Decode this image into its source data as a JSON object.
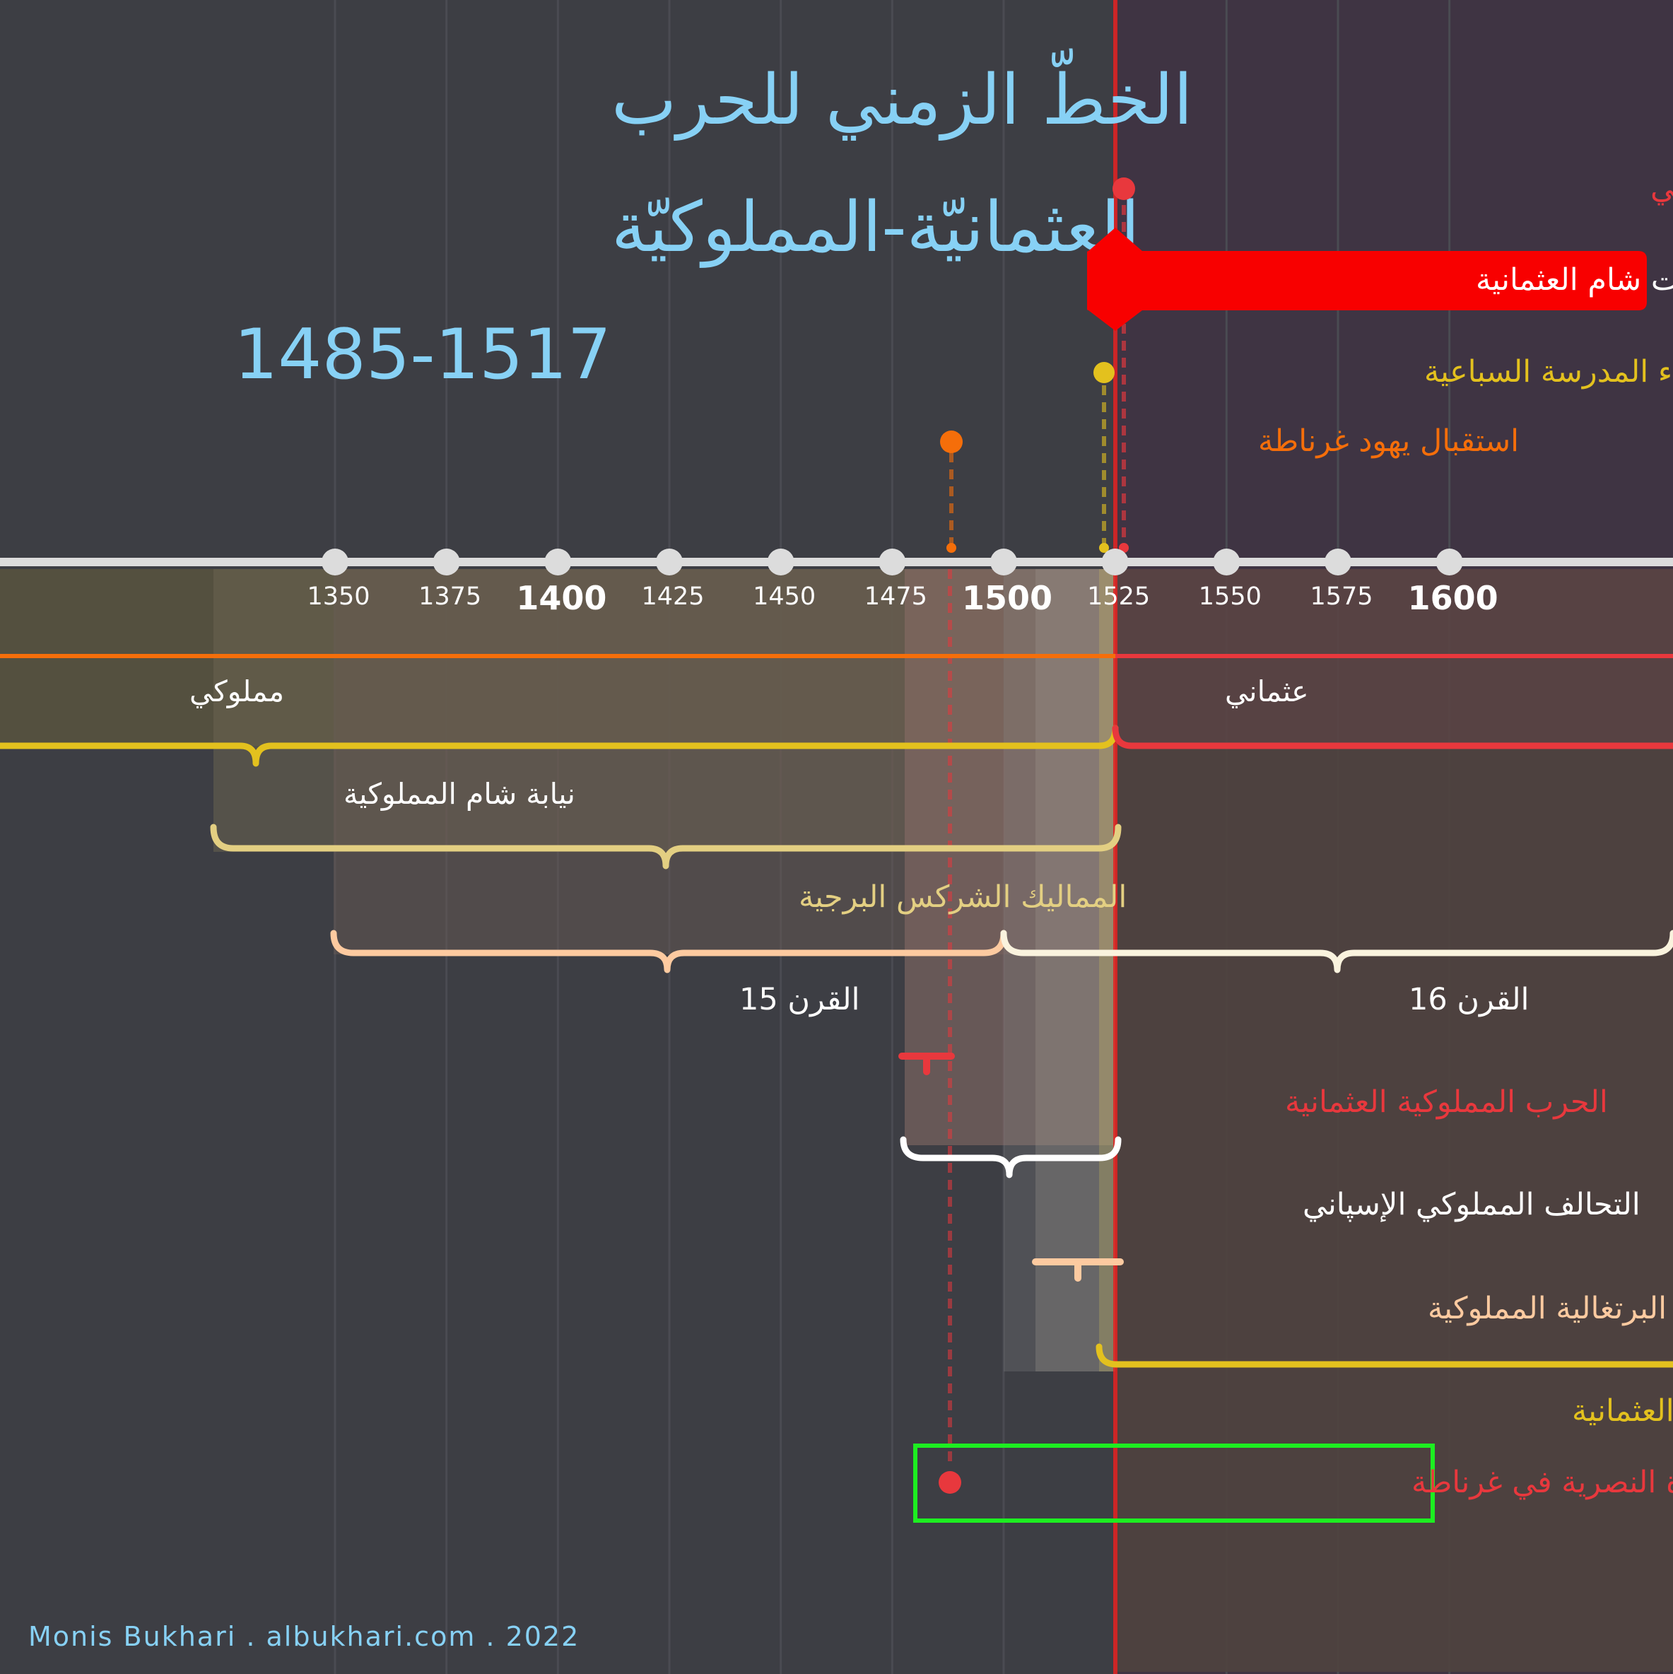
{
  "title": {
    "line1": "الخطّ الزمني للحرب",
    "line2": "العثمانيّة-المملوكيّة",
    "line3": "1485-1517"
  },
  "credit": "Monis Bukhari . albukhari.com . 2022",
  "axis": {
    "ticks": [
      {
        "year": 1350,
        "label": "1350",
        "major": false
      },
      {
        "year": 1375,
        "label": "1375",
        "major": false
      },
      {
        "year": 1400,
        "label": "1400",
        "major": true
      },
      {
        "year": 1425,
        "label": "1425",
        "major": false
      },
      {
        "year": 1450,
        "label": "1450",
        "major": false
      },
      {
        "year": 1475,
        "label": "1475",
        "major": false
      },
      {
        "year": 1500,
        "label": "1500",
        "major": true
      },
      {
        "year": 1525,
        "label": "1525",
        "major": false
      },
      {
        "year": 1550,
        "label": "1550",
        "major": false
      },
      {
        "year": 1575,
        "label": "1575",
        "major": false
      },
      {
        "year": 1600,
        "label": "1600",
        "major": true
      }
    ]
  },
  "colors": {
    "background": "#3d3e44",
    "background_right": "#3f3443",
    "title": "#87d1f5",
    "axis": "#dcdcdc",
    "red": "#e8383d",
    "bright_red": "#f80000",
    "orange": "#f56e0a",
    "yellow": "#e3c11e",
    "tan": "#e3cf82",
    "peach": "#fdcaa0",
    "cream": "#faf3de",
    "green": "#1dee21"
  },
  "events": [
    {
      "id": "ibn-arabi",
      "year": 1518,
      "label": "بناء جامع الشيخ محي الدين بن عربي",
      "color": "#e8383d"
    },
    {
      "id": "sabbaiya",
      "year": 1515,
      "label": "بناء المدرسة السباعية",
      "color": "#e3c11e"
    },
    {
      "id": "granada-jews",
      "year": 1492,
      "label": "استقبال يهود غرناطة",
      "color": "#f56e0a"
    },
    {
      "id": "nasrid-end",
      "year": 1492,
      "label": "نهاية الإمارة النصرية في غرناطة",
      "color": "#e8383d"
    }
  ],
  "key_event": {
    "year": 1516,
    "label": "تأسيس إيالت شام العثمانية",
    "color": "#f80000"
  },
  "eras": [
    {
      "id": "mamluk",
      "label": "مملوكي",
      "start": 1250,
      "end": 1516,
      "color": "#f56e0a"
    },
    {
      "id": "ottoman",
      "label": "عثماني",
      "start": 1516,
      "end": 1917,
      "color": "#e8383d"
    }
  ],
  "periods": [
    {
      "id": "mamluk-sham",
      "label": "نيابة شام المملوكية",
      "start": 1260,
      "end": 1516,
      "color": "#e3c11e"
    },
    {
      "id": "burji",
      "label": "المماليك الشركس البرجية",
      "start": 1382,
      "end": 1517,
      "color": "#e3cf82"
    },
    {
      "id": "c15",
      "label": "القرن 15",
      "start": 1400,
      "end": 1500,
      "color": "#fdcaa0"
    },
    {
      "id": "c16",
      "label": "القرن 16",
      "start": 1500,
      "end": 1600,
      "color": "#faf3de"
    },
    {
      "id": "ottoman-mamluk-war",
      "label": "الحرب المملوكية العثمانية",
      "start": 1485,
      "end": 1491,
      "color": "#e8383d"
    },
    {
      "id": "mamluk-spanish",
      "label": "التحالف المملوكي الإسپاني",
      "start": 1485,
      "end": 1517,
      "color": "#ffffff"
    },
    {
      "id": "portuguese-mamluk",
      "label": "الحرب البرتغالية المملوكية",
      "start": 1505,
      "end": 1517,
      "color": "#fdcaa0"
    },
    {
      "id": "ottoman-persian",
      "label": "الحرب الإيرانية العثمانية",
      "start": 1514,
      "end": 1555,
      "color": "#e3c11e"
    }
  ]
}
